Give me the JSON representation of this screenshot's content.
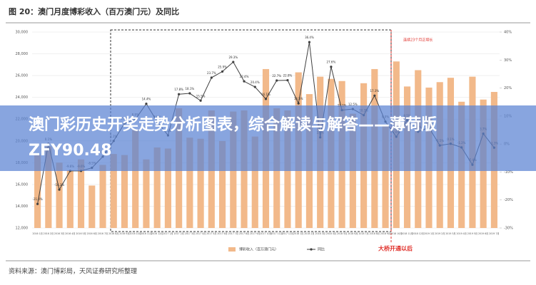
{
  "chart_data": {
    "type": "bar-line",
    "title": "图 20：澳门月度博彩收入（百万澳门元）及同比",
    "categories": [
      "2016 1月",
      "2016 2月",
      "2016 3月",
      "2016 4月",
      "2016 5月",
      "2016 6月",
      "2016 7月",
      "2016 8月",
      "2016 9月",
      "2016 10月",
      "2016 11月",
      "2016 12月",
      "2017 1月",
      "2017 2月",
      "2017 3月",
      "2017 4月",
      "2017 5月",
      "2017 6月",
      "2017 7月",
      "2017 8月",
      "2017 9月",
      "2017 10月",
      "2017 11月",
      "2017 12月",
      "2018 1月",
      "2018 2月",
      "2018 3月",
      "2018 4月",
      "2018 5月",
      "2018 6月",
      "2018 7月",
      "2018 8月",
      "2018 9月",
      "2018 10月",
      "2018 11月",
      "2018 12月",
      "2019 1月",
      "2019 2月",
      "2019 3月",
      "2019 4月",
      "2019 5月",
      "2019 6月",
      "2019 7月"
    ],
    "series": [
      {
        "name": "博彩收入（百万澳门元）",
        "color": "#f2b98a",
        "axis": "y",
        "values": [
          18700,
          19500,
          18000,
          17300,
          18300,
          15900,
          17800,
          18800,
          18700,
          21000,
          18300,
          19400,
          19300,
          23000,
          20300,
          20200,
          22800,
          19990,
          22700,
          22800,
          20400,
          26600,
          23000,
          22800,
          26300,
          24300,
          25900,
          25700,
          25500,
          22500,
          25300,
          26600,
          21500,
          27300,
          25000,
          26500,
          24900,
          25400,
          25800,
          23600,
          25900,
          23800,
          24500
        ]
      },
      {
        "name": "同比",
        "color": "#404040",
        "axis": "y2",
        "values": [
          -21.4,
          0.1,
          -16.3,
          -9.6,
          -9.6,
          -8.5,
          -4.5,
          1.1,
          7.4,
          8.8,
          14.4,
          8.0,
          3.1,
          17.8,
          18.1,
          15.5,
          23.7,
          25.9,
          29.3,
          22.4,
          20.4,
          16.1,
          22.7,
          22.8,
          14.5,
          36.4,
          2.4,
          27.6,
          12.1,
          12.5,
          10.3,
          17.3,
          8.0,
          2.6,
          8.5,
          4.4,
          5.9,
          -0.5,
          0.1,
          -1.2,
          -7.4,
          3.7,
          -1.3
        ],
        "value_labels": [
          "-21.4%",
          "0.1%",
          "-16.3%",
          "-9.6%",
          "-9.6%",
          "-8.5%",
          "-4.5%",
          "1.1%",
          "7.4%",
          "8.8%",
          "14.4%",
          "8.0%",
          "3.1%",
          "17.8%",
          "18.1%",
          "15.5%",
          "23.7%",
          "25.9%",
          "29.3%",
          "22.4%",
          "20.4%",
          "16.1%",
          "22.7%",
          "22.8%",
          "14.5%",
          "36.4%",
          "2.4%",
          "27.6%",
          "12.1%",
          "12.5%",
          "10.3%",
          "17.3%",
          "8.0%",
          "2.6%",
          "8.5%",
          "4.4%",
          "5.9%",
          "-0.5%",
          "0.1%",
          "-1.2%",
          "-7.4%",
          "3.7%",
          "-1.3%"
        ]
      }
    ],
    "ylim": [
      12000,
      30000
    ],
    "yticks": [
      {
        "value": 12000,
        "label": "12,000"
      },
      {
        "value": 14000,
        "label": "14,000"
      },
      {
        "value": 16000,
        "label": "16,000"
      },
      {
        "value": 18000,
        "label": "18,000"
      },
      {
        "value": 20000,
        "label": "20,000"
      },
      {
        "value": 22000,
        "label": "22,000"
      },
      {
        "value": 24000,
        "label": "24,000"
      },
      {
        "value": 26000,
        "label": "26,000"
      },
      {
        "value": 28000,
        "label": "28,000"
      },
      {
        "value": 30000,
        "label": "30,000"
      }
    ],
    "y2lim": [
      -30,
      40
    ],
    "y2ticks": [
      {
        "value": -30,
        "label": "-30%"
      },
      {
        "value": -20,
        "label": "-20%"
      },
      {
        "value": -10,
        "label": "-10%"
      },
      {
        "value": 0,
        "label": "0%"
      },
      {
        "value": 10,
        "label": "10%"
      },
      {
        "value": 20,
        "label": "20%"
      },
      {
        "value": 30,
        "label": "30%"
      },
      {
        "value": 40,
        "label": "40%"
      }
    ],
    "grid": true,
    "annotations": [
      "连续23个月正增长",
      "大桥开通以后"
    ],
    "source": "资料来源：澳门博彩局，天风证券研究所整理"
  },
  "banner": "澳门彩历史开奖走势分析图表，综合解读与解答——薄荷版ZFY90.48"
}
